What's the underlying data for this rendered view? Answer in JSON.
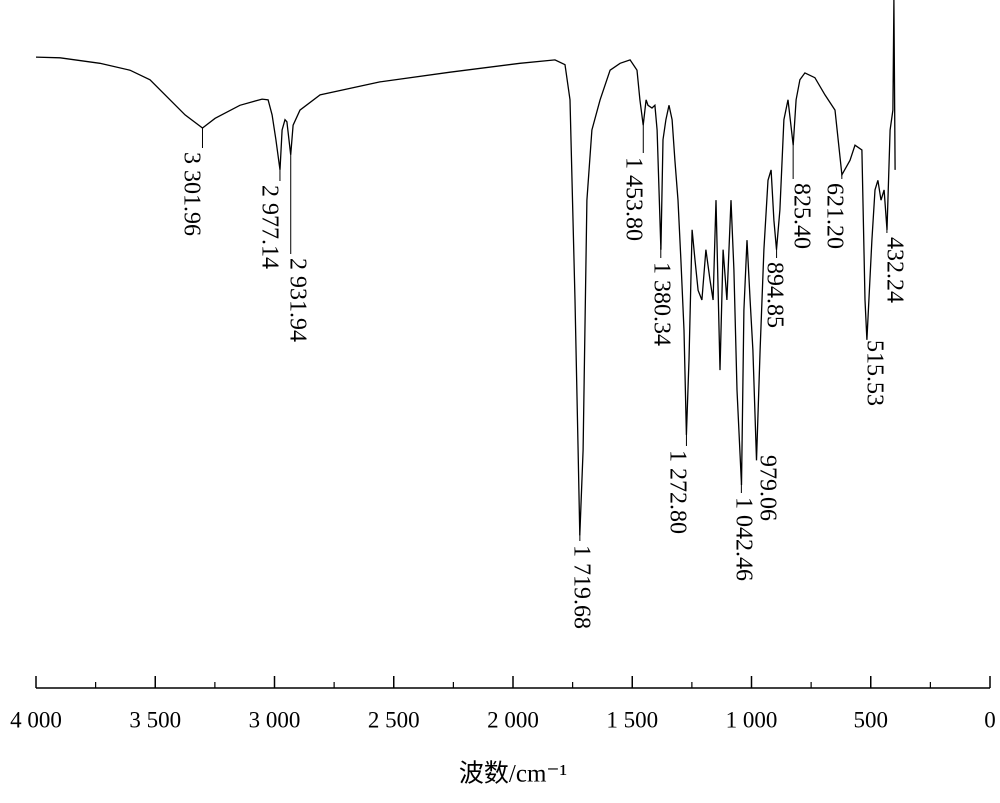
{
  "chart_data": {
    "type": "line",
    "x_label": "波数/cm⁻¹",
    "xlim": [
      4000,
      0
    ],
    "ylim": [
      0,
      100
    ],
    "xticks": [
      {
        "value": 4000,
        "label": "4 000"
      },
      {
        "value": 3500,
        "label": "3 500"
      },
      {
        "value": 3000,
        "label": "3 000"
      },
      {
        "value": 2500,
        "label": "2 500"
      },
      {
        "value": 2000,
        "label": "2 000"
      },
      {
        "value": 1500,
        "label": "1 500"
      },
      {
        "value": 1000,
        "label": "1 000"
      },
      500,
      0
    ],
    "xticks_minor": [
      3750,
      3250,
      2750,
      2250,
      1750,
      1250,
      750,
      250
    ],
    "color": "#000000",
    "x": [
      4000,
      3899,
      3732,
      3606,
      3522,
      3438,
      3375,
      3302,
      3249,
      3145,
      3052,
      3027,
      3010,
      2994,
      2977,
      2968,
      2956,
      2948,
      2932,
      2922,
      2893,
      2809,
      2558,
      2264,
      1971,
      1824,
      1782,
      1761,
      1740,
      1727,
      1720,
      1706,
      1690,
      1669,
      1635,
      1593,
      1551,
      1509,
      1480,
      1468,
      1454,
      1442,
      1434,
      1417,
      1405,
      1396,
      1380,
      1371,
      1359,
      1346,
      1333,
      1321,
      1308,
      1296,
      1283,
      1273,
      1262,
      1249,
      1237,
      1224,
      1208,
      1191,
      1174,
      1161,
      1149,
      1132,
      1119,
      1103,
      1086,
      1074,
      1061,
      1042,
      1032,
      1019,
      1006,
      994,
      979,
      964,
      948,
      931,
      918,
      906,
      895,
      881,
      864,
      847,
      825,
      813,
      797,
      776,
      734,
      692,
      650,
      621,
      587,
      566,
      537,
      524,
      516,
      495,
      482,
      470,
      457,
      444,
      432,
      419,
      407,
      403,
      398
    ],
    "values": [
      91.7,
      91.6,
      90.8,
      89.8,
      88.4,
      85.5,
      83.3,
      81.4,
      82.8,
      84.7,
      85.6,
      85.5,
      83.3,
      79.7,
      75.3,
      81.1,
      82.6,
      82.3,
      77.5,
      81.8,
      84.0,
      86.2,
      88.1,
      89.5,
      90.8,
      91.3,
      90.6,
      85.5,
      56.4,
      34.6,
      22.2,
      34.6,
      70.9,
      81.1,
      85.5,
      89.8,
      90.8,
      91.3,
      89.8,
      85.5,
      81.8,
      85.5,
      84.7,
      84.3,
      84.7,
      81.1,
      63.7,
      79.7,
      82.6,
      84.7,
      82.6,
      76.7,
      70.9,
      62.2,
      52.0,
      36.8,
      47.7,
      66.6,
      62.2,
      57.8,
      56.4,
      63.7,
      59.3,
      56.4,
      70.9,
      46.2,
      63.7,
      56.4,
      70.9,
      60.8,
      43.3,
      29.5,
      54.9,
      65.1,
      56.4,
      49.1,
      33.1,
      49.1,
      63.7,
      73.8,
      75.3,
      68.0,
      63.7,
      69.5,
      82.6,
      85.5,
      78.9,
      85.5,
      88.4,
      89.4,
      88.7,
      86.2,
      84.0,
      74.6,
      76.7,
      78.9,
      78.2,
      56.4,
      50.6,
      65.1,
      72.4,
      73.8,
      70.9,
      72.4,
      66.6,
      81.1,
      84.0,
      100,
      75.3
    ],
    "annotations": [
      {
        "x": 3301.96,
        "label": "3 301.96"
      },
      {
        "x": 2977.14,
        "label": "2 977.14"
      },
      {
        "x": 2931.94,
        "label": "2 931.94"
      },
      {
        "x": 1719.68,
        "label": "1 719.68"
      },
      {
        "x": 1453.8,
        "label": "1 453.80"
      },
      {
        "x": 1380.34,
        "label": "1 380.34"
      },
      {
        "x": 1272.8,
        "label": "1 272.80"
      },
      {
        "x": 1042.46,
        "label": "1 042.46"
      },
      {
        "x": 979.06,
        "label": "979.06"
      },
      {
        "x": 894.85,
        "label": "894.85"
      },
      {
        "x": 825.4,
        "label": "825.40"
      },
      {
        "x": 621.2,
        "label": "621.20"
      },
      {
        "x": 515.53,
        "label": "515.53"
      },
      {
        "x": 432.24,
        "label": "432.24"
      }
    ]
  }
}
